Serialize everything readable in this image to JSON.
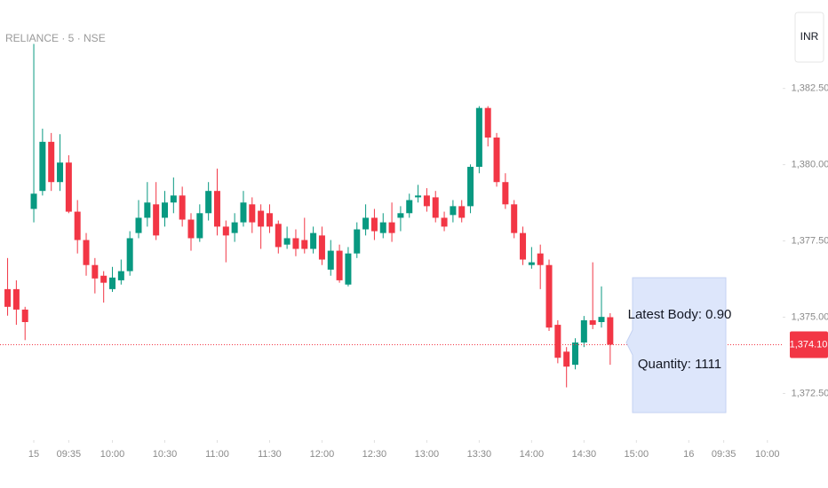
{
  "chart_data": {
    "type": "candlestick",
    "title": "RELIANCE · 5 · NSE",
    "currency": "INR",
    "up_color": "#089981",
    "down_color": "#f23645",
    "x": [
      -3,
      -2,
      -1,
      0,
      1,
      2,
      3,
      4,
      5,
      6,
      7,
      8,
      9,
      10,
      11,
      12,
      13,
      14,
      15,
      16,
      17,
      18,
      19,
      20,
      21,
      22,
      23,
      24,
      25,
      26,
      27,
      28,
      29,
      30,
      31,
      32,
      33,
      34,
      35,
      36,
      37,
      38,
      39,
      40,
      41,
      42,
      43,
      44,
      45,
      46,
      47,
      48,
      49,
      50,
      51,
      52,
      53,
      54,
      55,
      56,
      57,
      58,
      59,
      60,
      61,
      62,
      63,
      64,
      65,
      66
    ],
    "open": [
      1375.92,
      1375.92,
      1375.25,
      1378.55,
      1379.14,
      1380.75,
      1379.43,
      1380.07,
      1378.46,
      1377.53,
      1376.71,
      1376.36,
      1375.92,
      1376.21,
      1376.51,
      1377.76,
      1378.26,
      1378.7,
      1378.26,
      1378.76,
      1378.99,
      1378.2,
      1377.59,
      1378.41,
      1379.14,
      1377.97,
      1377.76,
      1378.11,
      1378.7,
      1378.49,
      1378.41,
      1378.06,
      1377.38,
      1377.59,
      1377.53,
      1377.24,
      1377.68,
      1376.56,
      1377.18,
      1376.07,
      1377.09,
      1377.88,
      1378.26,
      1377.76,
      1378.11,
      1378.26,
      1378.41,
      1378.93,
      1378.99,
      1378.93,
      1378.26,
      1378.35,
      1378.64,
      1378.64,
      1379.93,
      1381.86,
      1380.89,
      1379.43,
      1378.7,
      1377.76,
      1376.71,
      1377.09,
      1376.71,
      1374.75,
      1373.87,
      1373.44,
      1374.17,
      1374.9,
      1374.84,
      1375.0
    ],
    "high": [
      1376.94,
      1376.21,
      1375.34,
      1383.96,
      1381.18,
      1381.04,
      1381.0,
      1380.31,
      1378.84,
      1377.76,
      1376.94,
      1376.51,
      1376.65,
      1376.89,
      1377.82,
      1378.84,
      1379.43,
      1379.43,
      1379.14,
      1379.58,
      1379.28,
      1378.41,
      1378.7,
      1379.43,
      1379.87,
      1378.17,
      1378.41,
      1379.14,
      1378.93,
      1378.7,
      1378.7,
      1378.17,
      1377.97,
      1377.88,
      1378.26,
      1377.97,
      1377.97,
      1377.53,
      1377.38,
      1377.3,
      1378.11,
      1378.7,
      1378.55,
      1378.41,
      1378.76,
      1378.64,
      1379.05,
      1379.34,
      1379.23,
      1379.14,
      1378.46,
      1378.84,
      1378.84,
      1380.01,
      1381.92,
      1381.92,
      1381.04,
      1379.72,
      1378.84,
      1377.97,
      1377.3,
      1377.38,
      1376.89,
      1374.9,
      1374.02,
      1374.31,
      1375.04,
      1376.8,
      1376.01,
      1375.13
    ],
    "low": [
      1375.05,
      1374.75,
      1374.25,
      1378.11,
      1378.99,
      1379.14,
      1379.14,
      1378.41,
      1377.09,
      1376.36,
      1375.78,
      1375.48,
      1375.83,
      1376.07,
      1376.36,
      1377.59,
      1377.97,
      1377.53,
      1377.97,
      1378.41,
      1377.97,
      1377.18,
      1377.47,
      1378.17,
      1377.68,
      1376.8,
      1377.47,
      1377.97,
      1377.76,
      1377.24,
      1377.76,
      1377.09,
      1377.24,
      1377.0,
      1377.09,
      1377.09,
      1376.71,
      1376.36,
      1376.13,
      1376.01,
      1376.94,
      1377.68,
      1377.53,
      1377.59,
      1377.47,
      1377.82,
      1378.26,
      1378.76,
      1378.46,
      1378.11,
      1377.82,
      1378.11,
      1378.11,
      1378.41,
      1379.72,
      1380.6,
      1379.28,
      1378.55,
      1377.59,
      1376.71,
      1376.59,
      1375.92,
      1374.55,
      1373.49,
      1372.7,
      1373.29,
      1374.02,
      1374.61,
      1374.66,
      1373.44
    ],
    "close": [
      1375.34,
      1375.25,
      1374.84,
      1379.05,
      1380.75,
      1379.43,
      1380.07,
      1378.46,
      1377.53,
      1376.71,
      1376.27,
      1376.13,
      1376.3,
      1376.51,
      1377.59,
      1378.26,
      1378.76,
      1377.68,
      1378.76,
      1378.99,
      1378.2,
      1377.59,
      1378.41,
      1379.14,
      1377.97,
      1377.68,
      1378.11,
      1378.76,
      1378.11,
      1377.97,
      1377.97,
      1377.3,
      1377.59,
      1377.24,
      1377.24,
      1377.76,
      1376.89,
      1377.18,
      1376.21,
      1377.09,
      1377.88,
      1378.26,
      1377.82,
      1378.11,
      1377.76,
      1378.41,
      1378.84,
      1378.99,
      1378.64,
      1378.26,
      1377.97,
      1378.64,
      1378.26,
      1379.93,
      1381.86,
      1380.89,
      1379.43,
      1378.7,
      1377.76,
      1376.89,
      1376.8,
      1376.71,
      1374.66,
      1373.67,
      1373.38,
      1374.17,
      1374.9,
      1374.75,
      1375.01,
      1374.1
    ],
    "xlim": [
      -3.87,
      85.65
    ],
    "ylim": [
      1371,
      1385.4
    ],
    "xticks": [
      {
        "value": 0,
        "label": "15"
      },
      {
        "value": 4,
        "label": "09:35"
      },
      {
        "value": 9,
        "label": "10:00"
      },
      {
        "value": 15,
        "label": "10:30"
      },
      {
        "value": 21,
        "label": "11:00"
      },
      {
        "value": 27,
        "label": "11:30"
      },
      {
        "value": 33,
        "label": "12:00"
      },
      {
        "value": 39,
        "label": "12:30"
      },
      {
        "value": 45,
        "label": "13:00"
      },
      {
        "value": 51,
        "label": "13:30"
      },
      {
        "value": 57,
        "label": "14:00"
      },
      {
        "value": 63,
        "label": "14:30"
      },
      {
        "value": 69,
        "label": "15:00"
      },
      {
        "value": 75,
        "label": "16"
      },
      {
        "value": 79,
        "label": "09:35"
      },
      {
        "value": 84,
        "label": "10:00"
      }
    ],
    "yticks": [
      {
        "value": 1372.5,
        "label": "1,372.50"
      },
      {
        "value": 1375,
        "label": "1,375.00"
      },
      {
        "value": 1377.5,
        "label": "1,377.50"
      },
      {
        "value": 1380,
        "label": "1,380.00"
      },
      {
        "value": 1382.5,
        "label": "1,382.50"
      }
    ],
    "last_price": {
      "value": 1374.1,
      "label": "1,374.10"
    },
    "annotations": [
      "Latest Body: 0.90",
      "Quantity: 1111"
    ]
  }
}
